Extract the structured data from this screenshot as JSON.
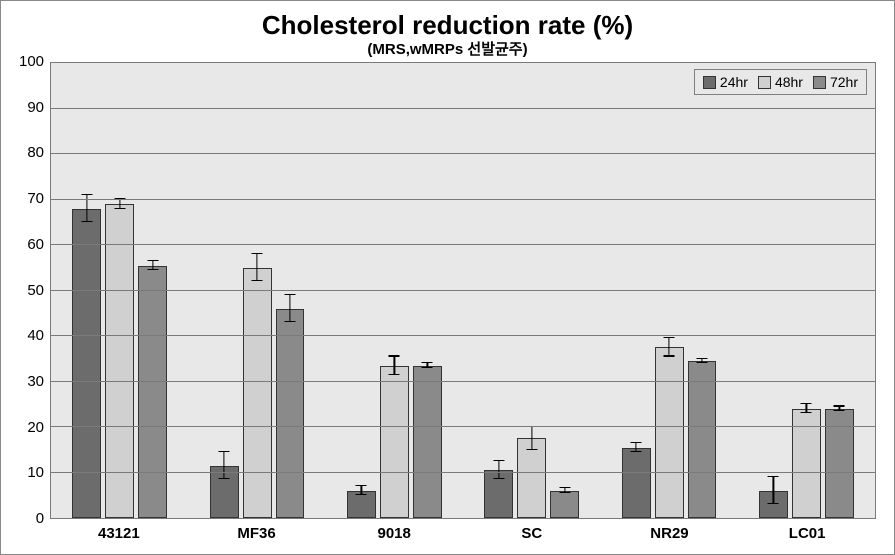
{
  "chart": {
    "type": "bar",
    "title": "Cholesterol reduction rate (%)",
    "title_fontsize": 26,
    "subtitle": "(MRS,wMRPs 선발균주)",
    "subtitle_fontsize": 15,
    "background_color": "#ffffff",
    "plot_background_color": "#e8e8e8",
    "grid_color": "#7a7a7a",
    "frame_border_color": "#888888",
    "ylim": [
      0,
      100
    ],
    "ytick_step": 10,
    "yticks": [
      0,
      10,
      20,
      30,
      40,
      50,
      60,
      70,
      80,
      90,
      100
    ],
    "categories": [
      "43121",
      "MF36",
      "9018",
      "SC",
      "NR29",
      "LC01"
    ],
    "series": [
      {
        "name": "24hr",
        "color": "#6c6c6c",
        "values": [
          68,
          11.5,
          6,
          10.5,
          15.5,
          6
        ],
        "errors": [
          3,
          3,
          1,
          2,
          1,
          3
        ]
      },
      {
        "name": "48hr",
        "color": "#d0d0d0",
        "values": [
          69,
          55,
          33.5,
          17.5,
          37.5,
          24
        ],
        "errors": [
          1,
          3,
          2,
          2.5,
          2,
          1
        ]
      },
      {
        "name": "72hr",
        "color": "#8a8a8a",
        "values": [
          55.5,
          46,
          33.5,
          6,
          34.5,
          24
        ],
        "errors": [
          1,
          3,
          0.5,
          0.5,
          0.5,
          0.5
        ]
      }
    ],
    "legend_position": "top-right",
    "axis_fontsize": 15,
    "category_fontweight": "bold"
  }
}
